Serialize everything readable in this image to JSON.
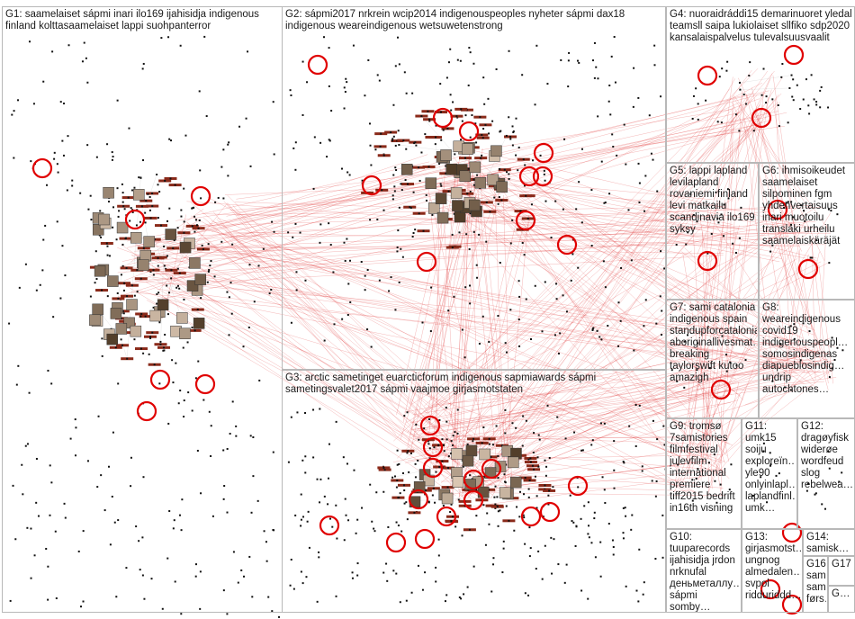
{
  "groups": [
    {
      "id": "G1",
      "label": "G1: saamelaiset sápmi inari ilo169 ijahisidja indigenous finland kolttasaamelaiset lappi suohpanterror"
    },
    {
      "id": "G2",
      "label": "G2: sápmi2017 nrkrein wcip2014 indigenouspeoples nyheter sápmi dax18 indigenous weareindigenous wetsuwetenstrong"
    },
    {
      "id": "G3",
      "label": "G3: arctic sametinget euarcticforum indigenous sapmiawards sápmi sametingsvalet2017 sápmi vaajmoe girjasmotstaten"
    },
    {
      "id": "G4",
      "label": "G4: nuoraidráddi15 demarinuoret yledal teamsll saipa lukiolaiset sllfiko sdp2020 kansalaispalvelus tulevalsuusvaalit"
    },
    {
      "id": "G5",
      "label": "G5: lappi lapland levilapland rovaniemi finland levi matkailu scandinavia ilo169 syksy"
    },
    {
      "id": "G6",
      "label": "G6: ihmisoikeudet saamelaiset silpominen fgm yhdenvertaisuus inari muotoilu translaki urheilu saamelaiskäräjät"
    },
    {
      "id": "G7",
      "label": "G7: sami catalonia indigenous spain standupforcatalonia aboriginallivesmat… breaking taylorswift kutoo amazigh"
    },
    {
      "id": "G8",
      "label": "G8: weareindigenous covid19 indigenouspeopl… somosindigenas diapueblosindig… undrip autochtones…"
    },
    {
      "id": "G9",
      "label": "G9: tromsø 7samistories filmfestival julevfilm international premiere tiff2015 bedrift in16th visning"
    },
    {
      "id": "G10",
      "label": "G10: tuuparecords ijahisidja jrdon nrknufal деньметаллу… sápmi somby…"
    },
    {
      "id": "G11",
      "label": "G11: umk15 soiju exploreïn… yle90 onlyinlapl… laplandfinl… umk…"
    },
    {
      "id": "G12",
      "label": "G12: dragøyfisk widerøe wordfeud slog rebelwea…"
    },
    {
      "id": "G13",
      "label": "G13: girjasmotst… ungnog almedalen… svpol ridduriddd…"
    },
    {
      "id": "G14",
      "label": "G14: samisk…"
    },
    {
      "id": "G16",
      "label": "G16: sam… sam… førs…"
    },
    {
      "id": "G17",
      "label": "G17"
    },
    {
      "id": "G18",
      "label": "G…"
    }
  ],
  "colors": {
    "edge": "#e03030",
    "edge_faint": "#c9c9c9",
    "node": "#111111",
    "ring": "#e00000",
    "label_fill": "#8a2a1a"
  }
}
